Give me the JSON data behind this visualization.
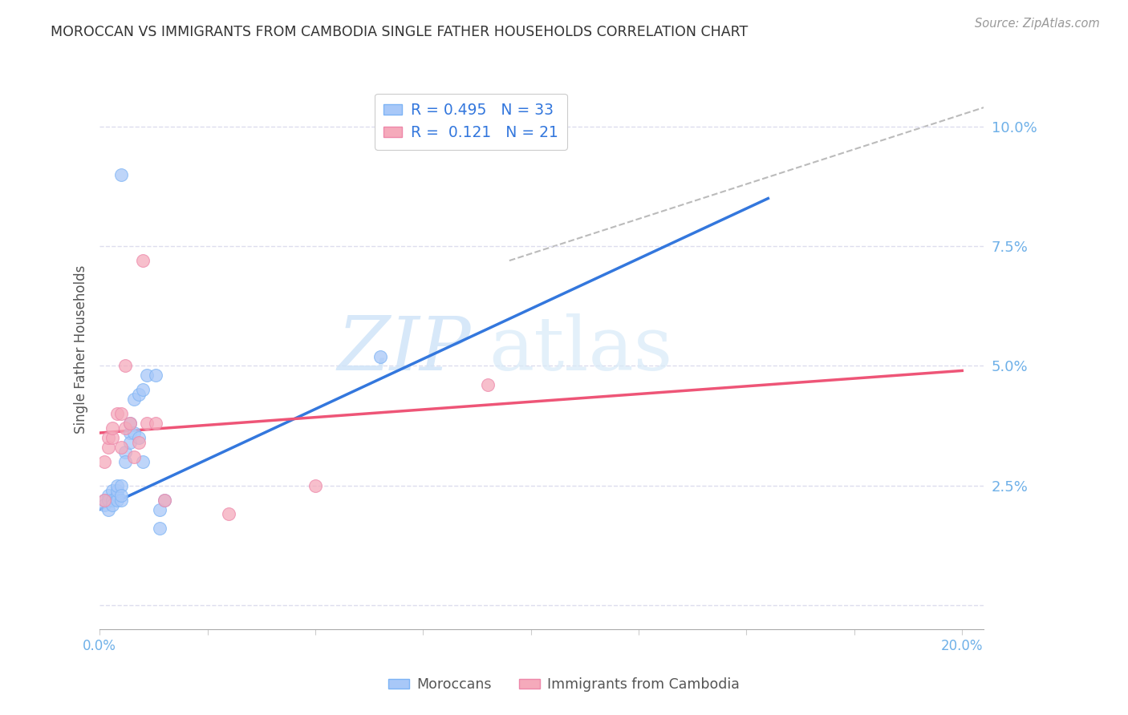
{
  "title": "MOROCCAN VS IMMIGRANTS FROM CAMBODIA SINGLE FATHER HOUSEHOLDS CORRELATION CHART",
  "source": "Source: ZipAtlas.com",
  "ylabel": "Single Father Households",
  "xlim": [
    0.0,
    0.205
  ],
  "ylim": [
    -0.005,
    0.112
  ],
  "xticks": [
    0.0,
    0.025,
    0.05,
    0.075,
    0.1,
    0.125,
    0.15,
    0.175,
    0.2
  ],
  "xticklabels_show": {
    "0.0": "0.0%",
    "0.20": "20.0%"
  },
  "yticks": [
    0.0,
    0.025,
    0.05,
    0.075,
    0.1
  ],
  "yticklabels": [
    "",
    "2.5%",
    "5.0%",
    "7.5%",
    "10.0%"
  ],
  "watermark": "ZIPatlas",
  "blue_color_fill": "#A8C8F8",
  "blue_color_edge": "#7EB4F5",
  "pink_color_fill": "#F5AABB",
  "pink_color_edge": "#EE88AA",
  "label_color": "#6EB0E8",
  "blue_scatter": [
    [
      0.001,
      0.022
    ],
    [
      0.001,
      0.021
    ],
    [
      0.002,
      0.023
    ],
    [
      0.002,
      0.02
    ],
    [
      0.002,
      0.022
    ],
    [
      0.003,
      0.024
    ],
    [
      0.003,
      0.022
    ],
    [
      0.003,
      0.021
    ],
    [
      0.004,
      0.023
    ],
    [
      0.004,
      0.022
    ],
    [
      0.004,
      0.024
    ],
    [
      0.004,
      0.025
    ],
    [
      0.005,
      0.022
    ],
    [
      0.005,
      0.025
    ],
    [
      0.005,
      0.023
    ],
    [
      0.006,
      0.032
    ],
    [
      0.006,
      0.03
    ],
    [
      0.007,
      0.036
    ],
    [
      0.007,
      0.038
    ],
    [
      0.007,
      0.034
    ],
    [
      0.008,
      0.036
    ],
    [
      0.008,
      0.043
    ],
    [
      0.009,
      0.044
    ],
    [
      0.009,
      0.035
    ],
    [
      0.01,
      0.03
    ],
    [
      0.01,
      0.045
    ],
    [
      0.011,
      0.048
    ],
    [
      0.013,
      0.048
    ],
    [
      0.014,
      0.02
    ],
    [
      0.014,
      0.016
    ],
    [
      0.015,
      0.022
    ],
    [
      0.065,
      0.052
    ],
    [
      0.005,
      0.09
    ]
  ],
  "pink_scatter": [
    [
      0.001,
      0.022
    ],
    [
      0.001,
      0.03
    ],
    [
      0.002,
      0.033
    ],
    [
      0.002,
      0.035
    ],
    [
      0.003,
      0.035
    ],
    [
      0.003,
      0.037
    ],
    [
      0.004,
      0.04
    ],
    [
      0.005,
      0.04
    ],
    [
      0.005,
      0.033
    ],
    [
      0.006,
      0.037
    ],
    [
      0.006,
      0.05
    ],
    [
      0.007,
      0.038
    ],
    [
      0.008,
      0.031
    ],
    [
      0.009,
      0.034
    ],
    [
      0.01,
      0.072
    ],
    [
      0.011,
      0.038
    ],
    [
      0.013,
      0.038
    ],
    [
      0.015,
      0.022
    ],
    [
      0.05,
      0.025
    ],
    [
      0.09,
      0.046
    ],
    [
      0.03,
      0.019
    ]
  ],
  "blue_line_x": [
    0.0,
    0.155
  ],
  "blue_line_y": [
    0.02,
    0.085
  ],
  "pink_line_x": [
    0.0,
    0.2
  ],
  "pink_line_y": [
    0.036,
    0.049
  ],
  "diag_line_x": [
    0.095,
    0.205
  ],
  "diag_line_y": [
    0.072,
    0.104
  ]
}
